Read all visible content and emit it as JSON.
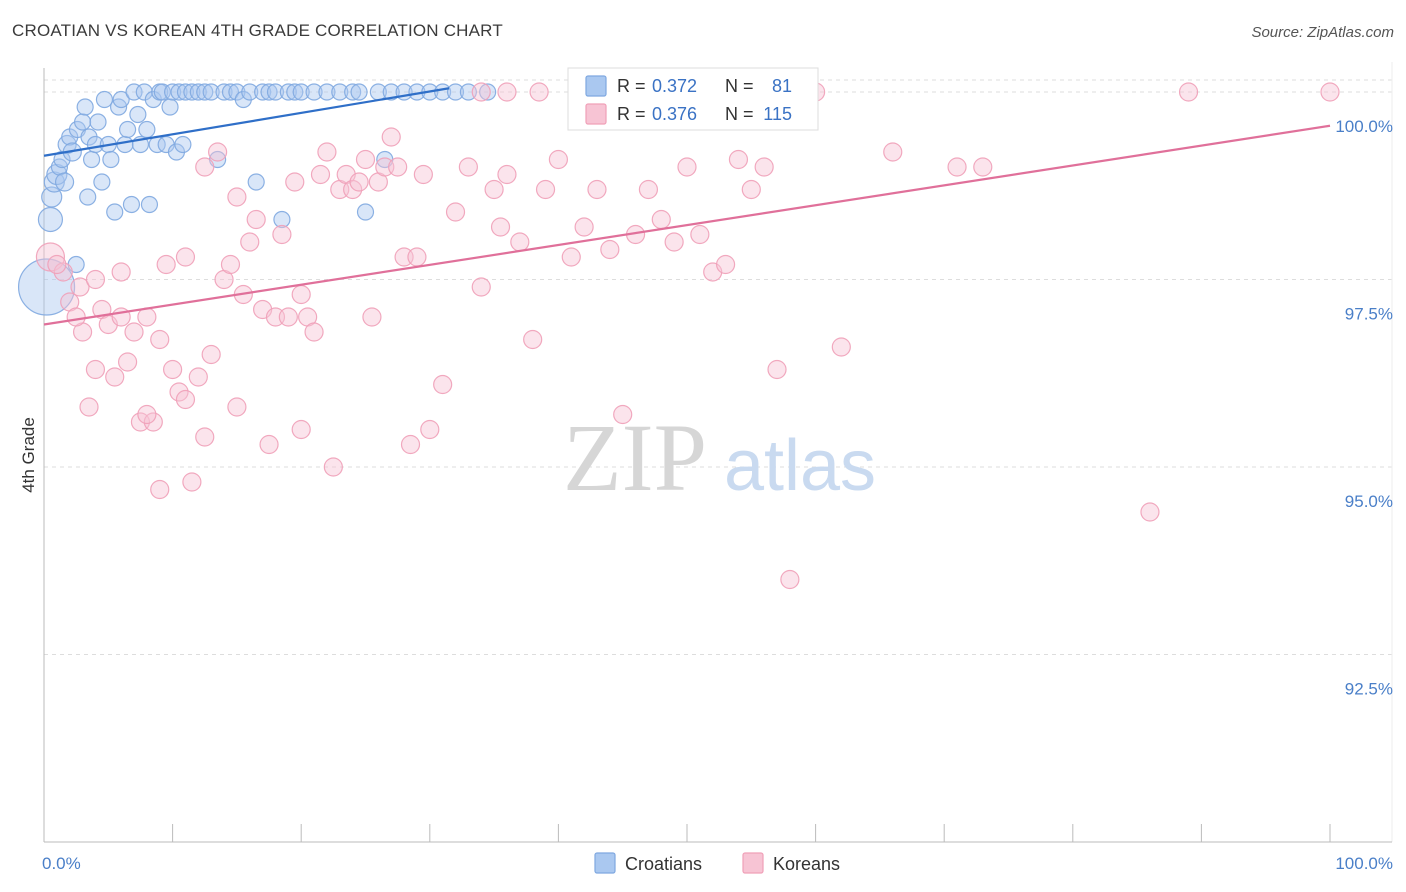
{
  "title": "CROATIAN VS KOREAN 4TH GRADE CORRELATION CHART",
  "source": "Source: ZipAtlas.com",
  "watermark": {
    "zip": "ZIP",
    "atlas": "atlas"
  },
  "chart_data": {
    "type": "scatter",
    "xlabel": "",
    "ylabel": "4th Grade",
    "xlim": [
      0,
      100
    ],
    "ylim": [
      90.0,
      100.4
    ],
    "x_tick_labels": [
      "0.0%",
      "100.0%"
    ],
    "y_ticks": [
      {
        "value": 100.0,
        "label": "100.0%"
      },
      {
        "value": 97.5,
        "label": "97.5%"
      },
      {
        "value": 95.0,
        "label": "95.0%"
      },
      {
        "value": 92.5,
        "label": "92.5%"
      }
    ],
    "legend": [
      {
        "name": "Croatians",
        "R_label": "R =",
        "R": "0.372",
        "N_label": "N =",
        "N": "81",
        "color": "#7fa8e0",
        "fill": "#aac8f0",
        "line": "#2f6fc8"
      },
      {
        "name": "Koreans",
        "R_label": "R =",
        "R": "0.376",
        "N_label": "N =",
        "N": "115",
        "color": "#f0a0b8",
        "fill": "#f7c4d4",
        "line": "#e0709a"
      }
    ],
    "series": [
      {
        "name": "Croatians",
        "trend": [
          [
            0,
            99.15
          ],
          [
            31.5,
            100.05
          ]
        ],
        "points": [
          [
            0.2,
            97.4,
            28
          ],
          [
            0.5,
            98.3,
            12
          ],
          [
            0.6,
            98.6,
            10
          ],
          [
            0.8,
            98.8,
            10
          ],
          [
            1.0,
            98.9,
            10
          ],
          [
            1.2,
            99.0,
            8
          ],
          [
            1.4,
            99.1,
            8
          ],
          [
            1.6,
            98.8,
            9
          ],
          [
            1.8,
            99.3,
            9
          ],
          [
            2.0,
            99.4,
            8
          ],
          [
            2.2,
            99.2,
            9
          ],
          [
            2.5,
            97.7,
            8
          ],
          [
            2.6,
            99.5,
            8
          ],
          [
            3.0,
            99.6,
            8
          ],
          [
            3.2,
            99.8,
            8
          ],
          [
            3.4,
            98.6,
            8
          ],
          [
            3.5,
            99.4,
            8
          ],
          [
            3.7,
            99.1,
            8
          ],
          [
            4.0,
            99.3,
            8
          ],
          [
            4.2,
            99.6,
            8
          ],
          [
            4.5,
            98.8,
            8
          ],
          [
            4.7,
            99.9,
            8
          ],
          [
            5.0,
            99.3,
            8
          ],
          [
            5.2,
            99.1,
            8
          ],
          [
            5.5,
            98.4,
            8
          ],
          [
            5.8,
            99.8,
            8
          ],
          [
            6.0,
            99.9,
            8
          ],
          [
            6.3,
            99.3,
            8
          ],
          [
            6.5,
            99.5,
            8
          ],
          [
            6.8,
            98.5,
            8
          ],
          [
            7.0,
            100.0,
            8
          ],
          [
            7.3,
            99.7,
            8
          ],
          [
            7.5,
            99.3,
            8
          ],
          [
            7.8,
            100.0,
            8
          ],
          [
            8.0,
            99.5,
            8
          ],
          [
            8.2,
            98.5,
            8
          ],
          [
            8.5,
            99.9,
            8
          ],
          [
            8.8,
            99.3,
            8
          ],
          [
            9.0,
            100.0,
            8
          ],
          [
            9.2,
            100.0,
            8
          ],
          [
            9.5,
            99.3,
            8
          ],
          [
            9.8,
            99.8,
            8
          ],
          [
            10.0,
            100.0,
            8
          ],
          [
            10.3,
            99.2,
            8
          ],
          [
            10.5,
            100.0,
            8
          ],
          [
            10.8,
            99.3,
            8
          ],
          [
            11.0,
            100.0,
            8
          ],
          [
            11.5,
            100.0,
            8
          ],
          [
            12.0,
            100.0,
            8
          ],
          [
            12.5,
            100.0,
            8
          ],
          [
            13.0,
            100.0,
            8
          ],
          [
            13.5,
            99.1,
            8
          ],
          [
            14.0,
            100.0,
            8
          ],
          [
            14.5,
            100.0,
            8
          ],
          [
            15.0,
            100.0,
            8
          ],
          [
            15.5,
            99.9,
            8
          ],
          [
            16.0,
            100.0,
            8
          ],
          [
            16.5,
            98.8,
            8
          ],
          [
            17.0,
            100.0,
            8
          ],
          [
            17.5,
            100.0,
            8
          ],
          [
            18.0,
            100.0,
            8
          ],
          [
            18.5,
            98.3,
            8
          ],
          [
            19.0,
            100.0,
            8
          ],
          [
            19.5,
            100.0,
            8
          ],
          [
            20.0,
            100.0,
            8
          ],
          [
            21.0,
            100.0,
            8
          ],
          [
            22.0,
            100.0,
            8
          ],
          [
            23.0,
            100.0,
            8
          ],
          [
            24.0,
            100.0,
            8
          ],
          [
            24.5,
            100.0,
            8
          ],
          [
            25.0,
            98.4,
            8
          ],
          [
            26.0,
            100.0,
            8
          ],
          [
            26.5,
            99.1,
            8
          ],
          [
            27.0,
            100.0,
            8
          ],
          [
            28.0,
            100.0,
            8
          ],
          [
            29.0,
            100.0,
            8
          ],
          [
            30.0,
            100.0,
            8
          ],
          [
            31.0,
            100.0,
            8
          ],
          [
            32.0,
            100.0,
            8
          ],
          [
            33.0,
            100.0,
            8
          ],
          [
            34.5,
            100.0,
            8
          ]
        ]
      },
      {
        "name": "Koreans",
        "trend": [
          [
            0,
            96.9
          ],
          [
            100,
            99.55
          ]
        ],
        "points": [
          [
            0.5,
            97.8,
            14
          ],
          [
            1.5,
            97.6,
            9
          ],
          [
            2.0,
            97.2,
            9
          ],
          [
            2.8,
            97.4,
            9
          ],
          [
            3.0,
            96.8,
            9
          ],
          [
            3.5,
            95.8,
            9
          ],
          [
            4.0,
            96.3,
            9
          ],
          [
            4.5,
            97.1,
            9
          ],
          [
            5.0,
            96.9,
            9
          ],
          [
            5.5,
            96.2,
            9
          ],
          [
            6.0,
            97.0,
            9
          ],
          [
            6.5,
            96.4,
            9
          ],
          [
            7.0,
            96.8,
            9
          ],
          [
            7.5,
            95.6,
            9
          ],
          [
            8.0,
            97.0,
            9
          ],
          [
            8.5,
            95.6,
            9
          ],
          [
            9.0,
            96.7,
            9
          ],
          [
            9.5,
            97.7,
            9
          ],
          [
            10.0,
            96.3,
            9
          ],
          [
            10.5,
            96.0,
            9
          ],
          [
            11.0,
            95.9,
            9
          ],
          [
            11.5,
            94.8,
            9
          ],
          [
            12.0,
            96.2,
            9
          ],
          [
            12.5,
            95.4,
            9
          ],
          [
            13.0,
            96.5,
            9
          ],
          [
            13.5,
            99.2,
            9
          ],
          [
            14.0,
            97.5,
            9
          ],
          [
            14.5,
            97.7,
            9
          ],
          [
            15.0,
            95.8,
            9
          ],
          [
            15.5,
            97.3,
            9
          ],
          [
            16.0,
            98.0,
            9
          ],
          [
            16.5,
            98.3,
            9
          ],
          [
            17.0,
            97.1,
            9
          ],
          [
            17.5,
            95.3,
            9
          ],
          [
            18.0,
            97.0,
            9
          ],
          [
            18.5,
            98.1,
            9
          ],
          [
            19.0,
            97.0,
            9
          ],
          [
            19.5,
            98.8,
            9
          ],
          [
            20.0,
            95.5,
            9
          ],
          [
            20.5,
            97.0,
            9
          ],
          [
            21.0,
            96.8,
            9
          ],
          [
            21.5,
            98.9,
            9
          ],
          [
            22.0,
            99.2,
            9
          ],
          [
            22.5,
            95.0,
            9
          ],
          [
            23.0,
            98.7,
            9
          ],
          [
            23.5,
            98.9,
            9
          ],
          [
            24.0,
            98.7,
            9
          ],
          [
            24.5,
            98.8,
            9
          ],
          [
            25.0,
            99.1,
            9
          ],
          [
            25.5,
            97.0,
            9
          ],
          [
            26.0,
            98.8,
            9
          ],
          [
            26.5,
            99.0,
            9
          ],
          [
            27.0,
            99.4,
            9
          ],
          [
            27.5,
            99.0,
            9
          ],
          [
            28.0,
            97.8,
            9
          ],
          [
            28.5,
            95.3,
            9
          ],
          [
            29.0,
            97.8,
            9
          ],
          [
            29.5,
            98.9,
            9
          ],
          [
            30.0,
            95.5,
            9
          ],
          [
            31.0,
            96.1,
            9
          ],
          [
            32.0,
            98.4,
            9
          ],
          [
            33.0,
            99.0,
            9
          ],
          [
            34.0,
            97.4,
            9
          ],
          [
            35.0,
            98.7,
            9
          ],
          [
            35.5,
            98.2,
            9
          ],
          [
            36.0,
            98.9,
            9
          ],
          [
            37.0,
            98.0,
            9
          ],
          [
            38.0,
            96.7,
            9
          ],
          [
            39.0,
            98.7,
            9
          ],
          [
            40.0,
            99.1,
            9
          ],
          [
            41.0,
            97.8,
            9
          ],
          [
            42.0,
            98.2,
            9
          ],
          [
            43.0,
            98.7,
            9
          ],
          [
            44.0,
            97.9,
            9
          ],
          [
            45.0,
            95.7,
            9
          ],
          [
            46.0,
            98.1,
            9
          ],
          [
            47.0,
            98.7,
            9
          ],
          [
            48.0,
            98.3,
            9
          ],
          [
            49.0,
            98.0,
            9
          ],
          [
            50.0,
            99.0,
            9
          ],
          [
            51.0,
            98.1,
            9
          ],
          [
            52.0,
            97.6,
            9
          ],
          [
            53.0,
            97.7,
            9
          ],
          [
            54.0,
            99.1,
            9
          ],
          [
            55.0,
            98.7,
            9
          ],
          [
            56.0,
            99.0,
            9
          ],
          [
            57.0,
            96.3,
            9
          ],
          [
            58.0,
            93.5,
            9
          ],
          [
            60.0,
            100.0,
            9
          ],
          [
            62.0,
            96.6,
            9
          ],
          [
            66.0,
            99.2,
            9
          ],
          [
            71.0,
            99.0,
            9
          ],
          [
            73.0,
            99.0,
            9
          ],
          [
            86.0,
            94.4,
            9
          ],
          [
            89.0,
            100.0,
            9
          ],
          [
            100.0,
            100.0,
            9
          ],
          [
            34.0,
            100.0,
            9
          ],
          [
            36.0,
            100.0,
            9
          ],
          [
            38.5,
            100.0,
            9
          ],
          [
            41.5,
            100.0,
            9
          ],
          [
            44.5,
            100.0,
            9
          ],
          [
            47.5,
            100.0,
            9
          ],
          [
            50.5,
            100.0,
            9
          ],
          [
            53.5,
            100.0,
            9
          ],
          [
            56.5,
            100.0,
            9
          ],
          [
            20.0,
            97.3,
            9
          ],
          [
            15.0,
            98.6,
            9
          ],
          [
            11.0,
            97.8,
            9
          ],
          [
            6.0,
            97.6,
            9
          ],
          [
            4.0,
            97.5,
            9
          ],
          [
            2.5,
            97.0,
            9
          ],
          [
            1.0,
            97.7,
            9
          ],
          [
            12.5,
            99.0,
            9
          ],
          [
            8.0,
            95.7,
            9
          ],
          [
            9.0,
            94.7,
            9
          ]
        ]
      }
    ]
  }
}
